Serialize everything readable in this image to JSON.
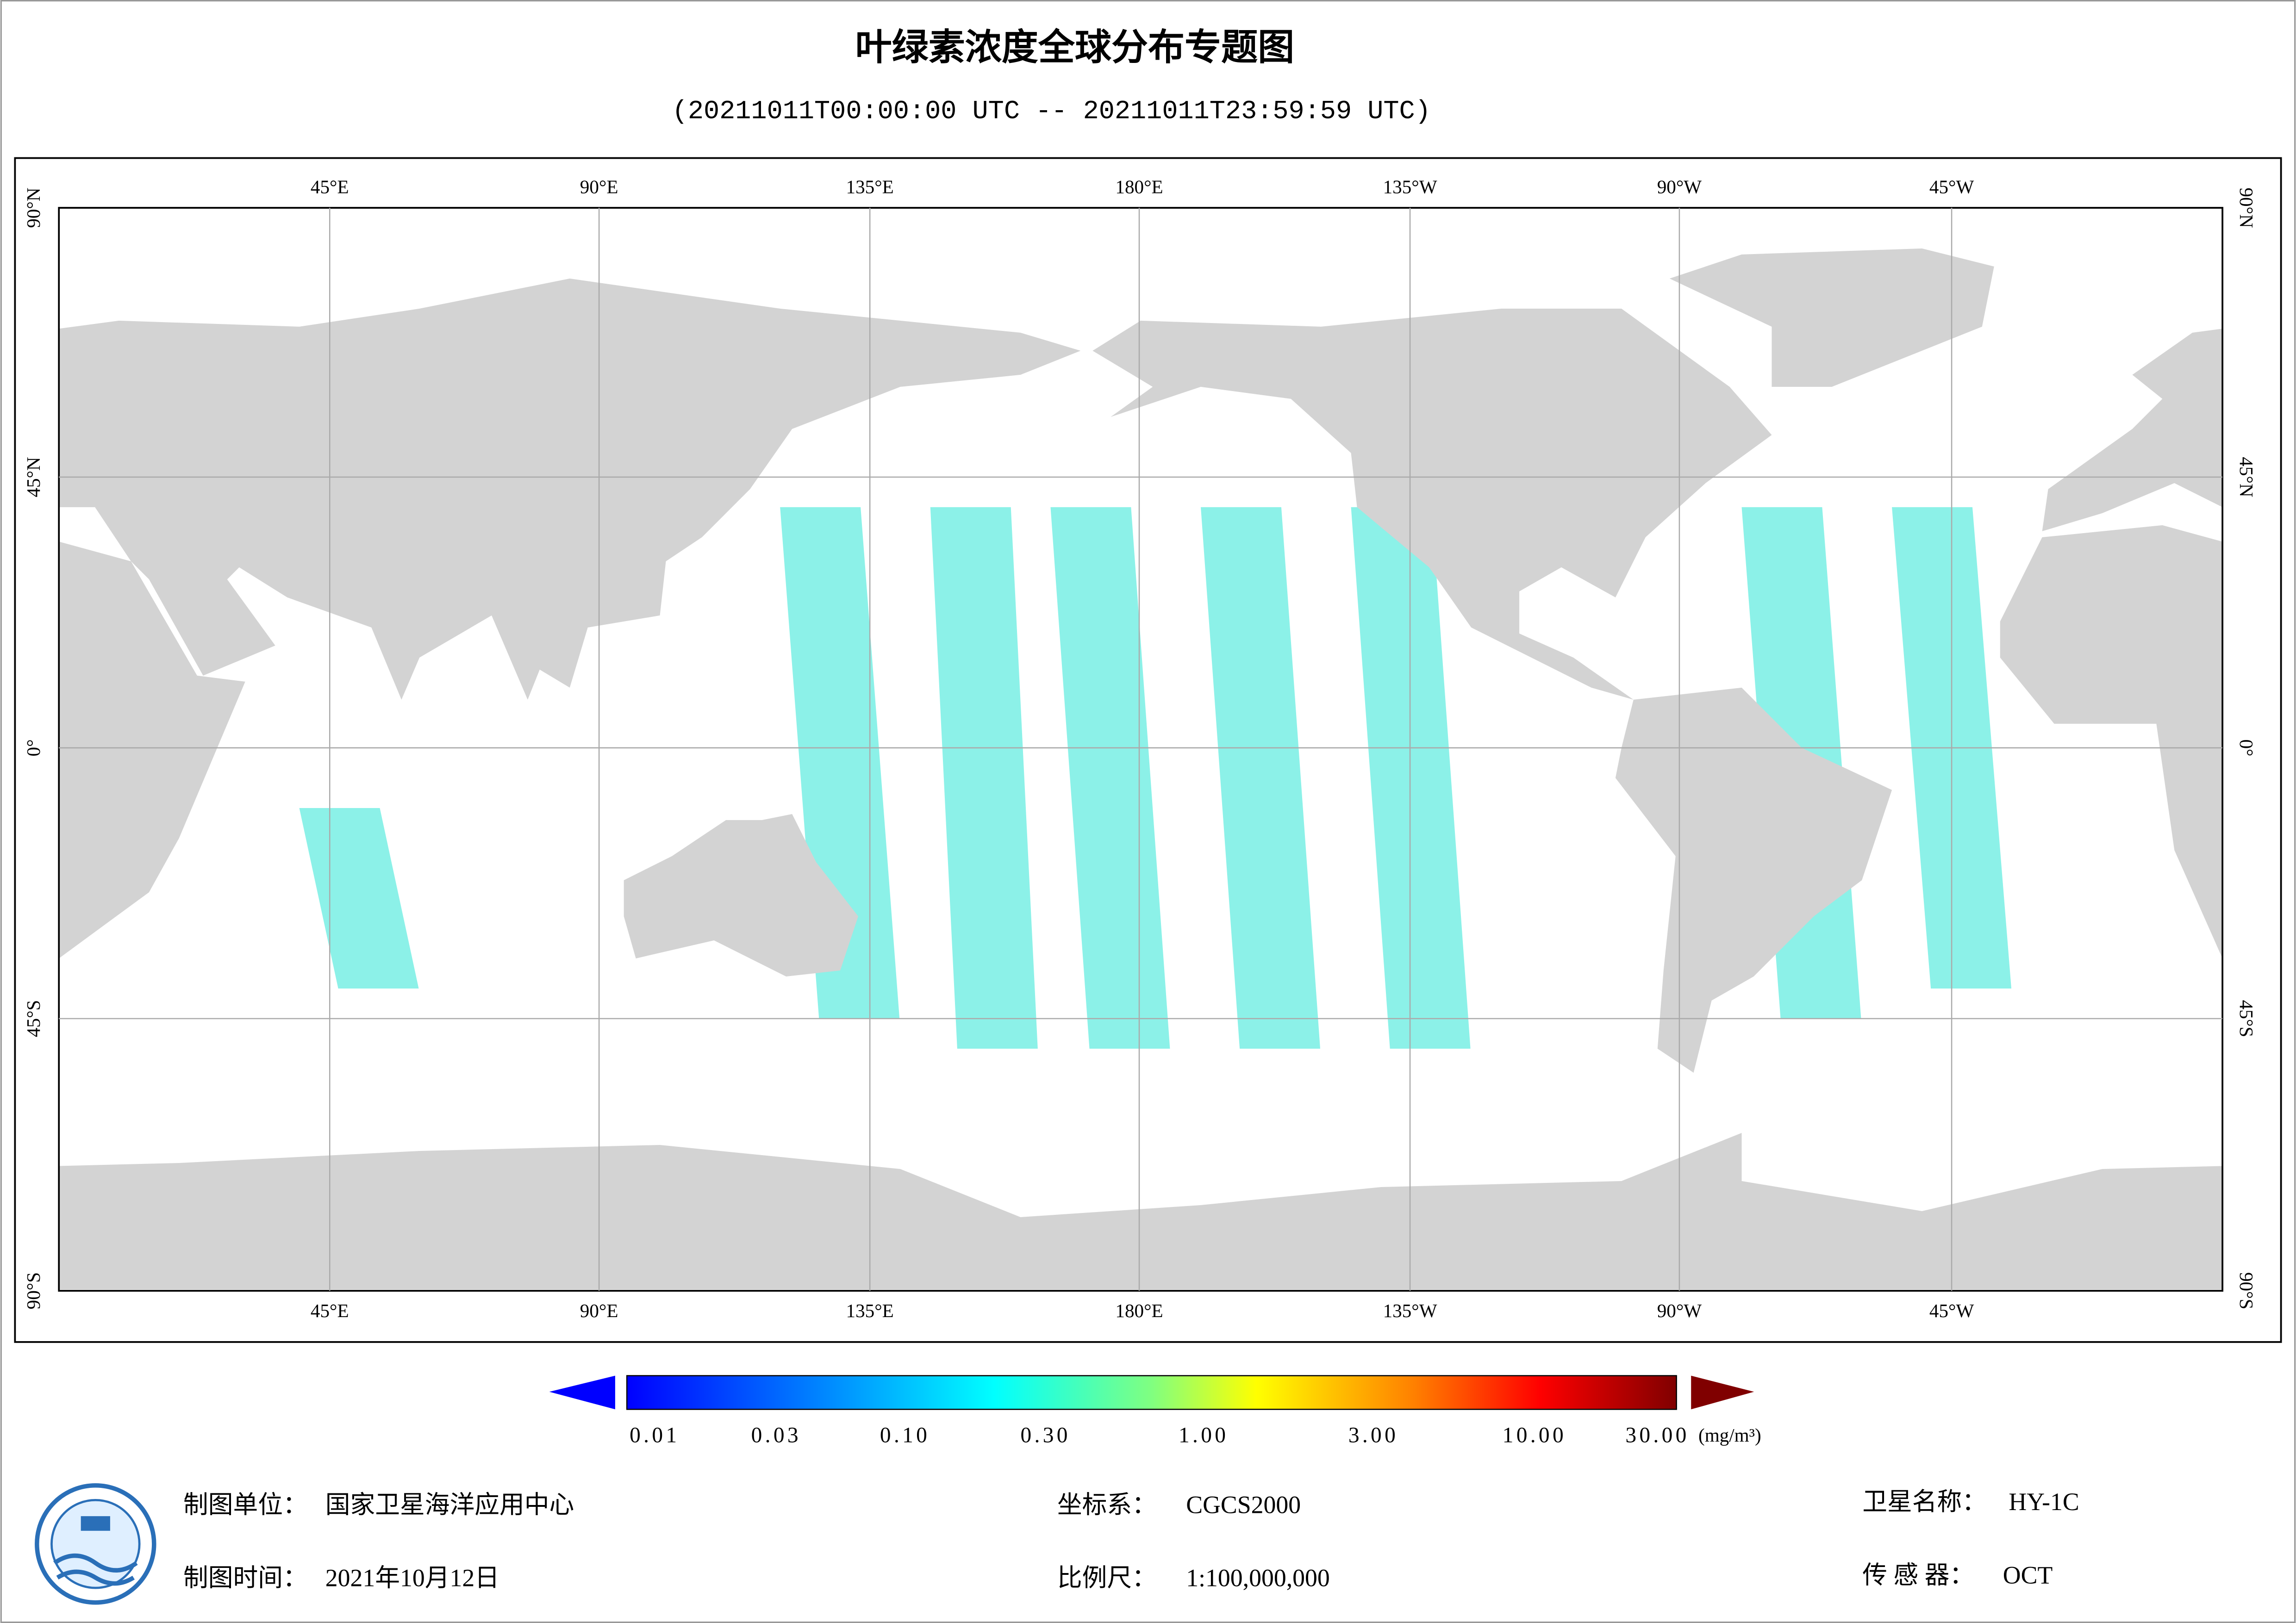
{
  "title": "叶绿素浓度全球分布专题图",
  "subtitle": "(20211011T00:00:00 UTC -- 20211011T23:59:59 UTC)",
  "map": {
    "lon_labels": [
      "45°E",
      "90°E",
      "135°E",
      "180°E",
      "135°W",
      "90°W",
      "45°W"
    ],
    "lat_labels": [
      "90°N",
      "45°N",
      "0°",
      "45°S",
      "90°S"
    ]
  },
  "colorbar": {
    "ticks": [
      "0.01",
      "0.03",
      "0.10",
      "0.30",
      "1.00",
      "3.00",
      "10.00",
      "30.00"
    ],
    "unit": "(mg/m³)"
  },
  "footer": {
    "unit": {
      "label": "制图单位：",
      "value": "国家卫星海洋应用中心"
    },
    "date": {
      "label": "制图时间：",
      "value": "2021年10月12日"
    },
    "crs": {
      "label": "坐标系：",
      "value": "CGCS2000"
    },
    "scale": {
      "label": "比例尺：",
      "value": "1:100,000,000"
    },
    "satellite": {
      "label": "卫星名称：",
      "value": "HY-1C"
    },
    "sensor": {
      "label": "传 感 器：",
      "value": "OCT"
    }
  }
}
